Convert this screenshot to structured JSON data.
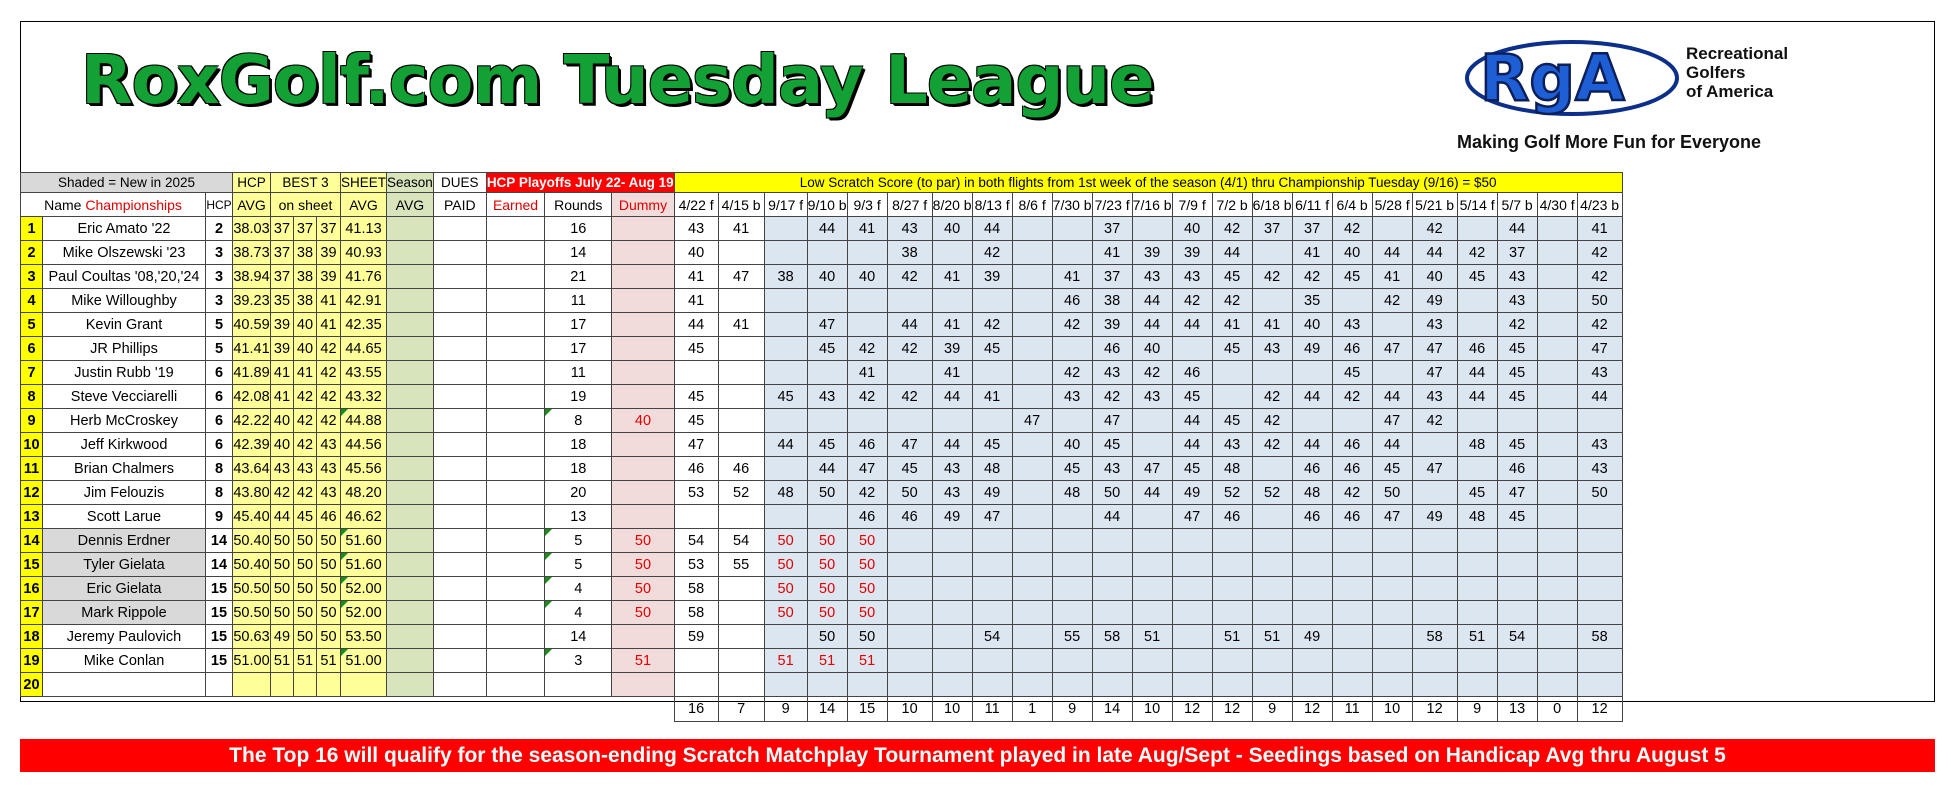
{
  "title": "RoxGolf.com Tuesday League",
  "logo": {
    "letters": "RgA",
    "line1": "Recreational",
    "line2": "Golfers",
    "line3": "of America",
    "tagline": "Making Golf More Fun for Everyone"
  },
  "header": {
    "shaded_note": "Shaded = New in 2025",
    "name_label": "Name",
    "championships_label": "Championships",
    "hcp_label": "HCP",
    "hcp_avg_1": "HCP",
    "hcp_avg_2": "AVG",
    "best3_1": "BEST 3",
    "best3_2": "on sheet",
    "sheet_1": "SHEET",
    "sheet_2": "AVG",
    "season_1": "Season",
    "season_2": "AVG",
    "dues_1": "DUES",
    "dues_2": "PAID",
    "playoffs": "HCP Playoffs July 22- Aug 19",
    "earned": "Earned",
    "rounds": "Rounds",
    "dummy": "Dummy",
    "low_scratch": "Low Scratch Score (to par) in both flights from 1st week of the season (4/1) thru Championship Tuesday (9/16) = $50",
    "weeks": [
      "4/22 f",
      "4/15 b",
      "9/17 f",
      "9/10 b",
      "9/3 f",
      "8/27 f",
      "8/20 b",
      "8/13 f",
      "8/6 f",
      "7/30 b",
      "7/23 f",
      "7/16 b",
      "7/9 f",
      "7/2 b",
      "6/18 b",
      "6/11 f",
      "6/4 b",
      "5/28 f",
      "5/21 b",
      "5/14 f",
      "5/7 b",
      "4/30 f",
      "4/23 b"
    ]
  },
  "players": [
    {
      "rank": "1",
      "name": "Eric Amato '22",
      "hcp": "2",
      "avg": "38.03",
      "b1": "37",
      "b2": "37",
      "b3": "37",
      "sheet": "41.13",
      "new": false,
      "flag": false,
      "dummy": "",
      "rounds": "16",
      "scores": [
        "43",
        "41",
        "",
        "44",
        "41",
        "43",
        "40",
        "44",
        "",
        "",
        "37",
        "",
        "40",
        "42",
        "37",
        "37",
        "42",
        "",
        "42",
        "",
        "44",
        "",
        "41"
      ]
    },
    {
      "rank": "2",
      "name": "Mike Olszewski '23",
      "hcp": "3",
      "avg": "38.73",
      "b1": "37",
      "b2": "38",
      "b3": "39",
      "sheet": "40.93",
      "new": false,
      "flag": false,
      "dummy": "",
      "rounds": "14",
      "scores": [
        "40",
        "",
        "",
        "",
        "",
        "38",
        "",
        "42",
        "",
        "",
        "41",
        "39",
        "39",
        "44",
        "",
        "41",
        "40",
        "44",
        "44",
        "42",
        "37",
        "",
        "42"
      ]
    },
    {
      "rank": "3",
      "name": "Paul Coultas '08,'20,'24",
      "hcp": "3",
      "avg": "38.94",
      "b1": "37",
      "b2": "38",
      "b3": "39",
      "sheet": "41.76",
      "new": false,
      "flag": false,
      "dummy": "",
      "rounds": "21",
      "scores": [
        "41",
        "47",
        "38",
        "40",
        "40",
        "42",
        "41",
        "39",
        "",
        "41",
        "37",
        "43",
        "43",
        "45",
        "42",
        "42",
        "45",
        "41",
        "40",
        "45",
        "43",
        "",
        "42"
      ]
    },
    {
      "rank": "4",
      "name": "Mike Willoughby",
      "hcp": "3",
      "avg": "39.23",
      "b1": "35",
      "b2": "38",
      "b3": "41",
      "sheet": "42.91",
      "new": false,
      "flag": false,
      "dummy": "",
      "rounds": "11",
      "scores": [
        "41",
        "",
        "",
        "",
        "",
        "",
        "",
        "",
        "",
        "46",
        "38",
        "44",
        "42",
        "42",
        "",
        "35",
        "",
        "42",
        "49",
        "",
        "43",
        "",
        "50"
      ]
    },
    {
      "rank": "5",
      "name": "Kevin Grant",
      "hcp": "5",
      "avg": "40.59",
      "b1": "39",
      "b2": "40",
      "b3": "41",
      "sheet": "42.35",
      "new": false,
      "flag": false,
      "dummy": "",
      "rounds": "17",
      "scores": [
        "44",
        "41",
        "",
        "47",
        "",
        "44",
        "41",
        "42",
        "",
        "42",
        "39",
        "44",
        "44",
        "41",
        "41",
        "40",
        "43",
        "",
        "43",
        "",
        "42",
        "",
        "42"
      ]
    },
    {
      "rank": "6",
      "name": "JR Phillips",
      "hcp": "5",
      "avg": "41.41",
      "b1": "39",
      "b2": "40",
      "b3": "42",
      "sheet": "44.65",
      "new": false,
      "flag": false,
      "dummy": "",
      "rounds": "17",
      "scores": [
        "45",
        "",
        "",
        "45",
        "42",
        "42",
        "39",
        "45",
        "",
        "",
        "46",
        "40",
        "",
        "45",
        "43",
        "49",
        "46",
        "47",
        "47",
        "46",
        "45",
        "",
        "47"
      ]
    },
    {
      "rank": "7",
      "name": "Justin Rubb '19",
      "hcp": "6",
      "avg": "41.89",
      "b1": "41",
      "b2": "41",
      "b3": "42",
      "sheet": "43.55",
      "new": false,
      "flag": false,
      "dummy": "",
      "rounds": "11",
      "scores": [
        "",
        "",
        "",
        "",
        "41",
        "",
        "41",
        "",
        "",
        "42",
        "43",
        "42",
        "46",
        "",
        "",
        "",
        "45",
        "",
        "47",
        "44",
        "45",
        "",
        "43"
      ]
    },
    {
      "rank": "8",
      "name": "Steve Vecciarelli",
      "hcp": "6",
      "avg": "42.08",
      "b1": "41",
      "b2": "42",
      "b3": "42",
      "sheet": "43.32",
      "new": false,
      "flag": false,
      "dummy": "",
      "rounds": "19",
      "scores": [
        "45",
        "",
        "45",
        "43",
        "42",
        "42",
        "44",
        "41",
        "",
        "43",
        "42",
        "43",
        "45",
        "",
        "42",
        "44",
        "42",
        "44",
        "43",
        "44",
        "45",
        "",
        "44"
      ]
    },
    {
      "rank": "9",
      "name": "Herb McCroskey",
      "hcp": "6",
      "avg": "42.22",
      "b1": "40",
      "b2": "42",
      "b3": "42",
      "sheet": "44.88",
      "new": false,
      "flag": true,
      "dummy": "40",
      "rounds": "8",
      "scores": [
        "45",
        "",
        "",
        "",
        "",
        "",
        "",
        "",
        "47",
        "",
        "47",
        "",
        "44",
        "45",
        "42",
        "",
        "",
        "47",
        "42",
        "",
        "",
        "",
        ""
      ]
    },
    {
      "rank": "10",
      "name": "Jeff Kirkwood",
      "hcp": "6",
      "avg": "42.39",
      "b1": "40",
      "b2": "42",
      "b3": "43",
      "sheet": "44.56",
      "new": false,
      "flag": false,
      "dummy": "",
      "rounds": "18",
      "scores": [
        "47",
        "",
        "44",
        "45",
        "46",
        "47",
        "44",
        "45",
        "",
        "40",
        "45",
        "",
        "44",
        "43",
        "42",
        "44",
        "46",
        "44",
        "",
        "48",
        "45",
        "",
        "43"
      ]
    },
    {
      "rank": "11",
      "name": "Brian Chalmers",
      "hcp": "8",
      "avg": "43.64",
      "b1": "43",
      "b2": "43",
      "b3": "43",
      "sheet": "45.56",
      "new": false,
      "flag": false,
      "dummy": "",
      "rounds": "18",
      "scores": [
        "46",
        "46",
        "",
        "44",
        "47",
        "45",
        "43",
        "48",
        "",
        "45",
        "43",
        "47",
        "45",
        "48",
        "",
        "46",
        "46",
        "45",
        "47",
        "",
        "46",
        "",
        "43"
      ]
    },
    {
      "rank": "12",
      "name": "Jim Felouzis",
      "hcp": "8",
      "avg": "43.80",
      "b1": "42",
      "b2": "42",
      "b3": "43",
      "sheet": "48.20",
      "new": false,
      "flag": false,
      "dummy": "",
      "rounds": "20",
      "scores": [
        "53",
        "52",
        "48",
        "50",
        "42",
        "50",
        "43",
        "49",
        "",
        "48",
        "50",
        "44",
        "49",
        "52",
        "52",
        "48",
        "42",
        "50",
        "",
        "45",
        "47",
        "",
        "50"
      ]
    },
    {
      "rank": "13",
      "name": "Scott Larue",
      "hcp": "9",
      "avg": "45.40",
      "b1": "44",
      "b2": "45",
      "b3": "46",
      "sheet": "46.62",
      "new": false,
      "flag": false,
      "dummy": "",
      "rounds": "13",
      "scores": [
        "",
        "",
        "",
        "",
        "46",
        "46",
        "49",
        "47",
        "",
        "",
        "44",
        "",
        "47",
        "46",
        "",
        "46",
        "46",
        "47",
        "49",
        "48",
        "45",
        "",
        ""
      ]
    },
    {
      "rank": "14",
      "name": "Dennis Erdner",
      "hcp": "14",
      "avg": "50.40",
      "b1": "50",
      "b2": "50",
      "b3": "50",
      "sheet": "51.60",
      "new": true,
      "flag": true,
      "dummy": "50",
      "rounds": "5",
      "scores": [
        "54",
        "54",
        "50",
        "50",
        "50",
        "",
        "",
        "",
        "",
        "",
        "",
        "",
        "",
        "",
        "",
        "",
        "",
        "",
        "",
        "",
        "",
        "",
        ""
      ],
      "red": [
        2,
        3,
        4
      ]
    },
    {
      "rank": "15",
      "name": "Tyler Gielata",
      "hcp": "14",
      "avg": "50.40",
      "b1": "50",
      "b2": "50",
      "b3": "50",
      "sheet": "51.60",
      "new": true,
      "flag": true,
      "dummy": "50",
      "rounds": "5",
      "scores": [
        "53",
        "55",
        "50",
        "50",
        "50",
        "",
        "",
        "",
        "",
        "",
        "",
        "",
        "",
        "",
        "",
        "",
        "",
        "",
        "",
        "",
        "",
        "",
        ""
      ],
      "red": [
        2,
        3,
        4
      ]
    },
    {
      "rank": "16",
      "name": "Eric Gielata",
      "hcp": "15",
      "avg": "50.50",
      "b1": "50",
      "b2": "50",
      "b3": "50",
      "sheet": "52.00",
      "new": true,
      "flag": true,
      "dummy": "50",
      "rounds": "4",
      "scores": [
        "58",
        "",
        "50",
        "50",
        "50",
        "",
        "",
        "",
        "",
        "",
        "",
        "",
        "",
        "",
        "",
        "",
        "",
        "",
        "",
        "",
        "",
        "",
        ""
      ],
      "red": [
        2,
        3,
        4
      ]
    },
    {
      "rank": "17",
      "name": "Mark Rippole",
      "hcp": "15",
      "avg": "50.50",
      "b1": "50",
      "b2": "50",
      "b3": "50",
      "sheet": "52.00",
      "new": true,
      "flag": true,
      "dummy": "50",
      "rounds": "4",
      "scores": [
        "58",
        "",
        "50",
        "50",
        "50",
        "",
        "",
        "",
        "",
        "",
        "",
        "",
        "",
        "",
        "",
        "",
        "",
        "",
        "",
        "",
        "",
        "",
        ""
      ],
      "red": [
        2,
        3,
        4
      ]
    },
    {
      "rank": "18",
      "name": "Jeremy Paulovich",
      "hcp": "15",
      "avg": "50.63",
      "b1": "49",
      "b2": "50",
      "b3": "50",
      "sheet": "53.50",
      "new": false,
      "flag": false,
      "dummy": "",
      "rounds": "14",
      "scores": [
        "59",
        "",
        "",
        "50",
        "50",
        "",
        "",
        "54",
        "",
        "55",
        "58",
        "51",
        "",
        "51",
        "51",
        "49",
        "",
        "",
        "58",
        "51",
        "54",
        "",
        "58"
      ]
    },
    {
      "rank": "19",
      "name": "Mike Conlan",
      "hcp": "15",
      "avg": "51.00",
      "b1": "51",
      "b2": "51",
      "b3": "51",
      "sheet": "51.00",
      "new": false,
      "flag": true,
      "dummy": "51",
      "rounds": "3",
      "scores": [
        "",
        "",
        "51",
        "51",
        "51",
        "",
        "",
        "",
        "",
        "",
        "",
        "",
        "",
        "",
        "",
        "",
        "",
        "",
        "",
        "",
        "",
        "",
        ""
      ],
      "red": [
        2,
        3,
        4
      ]
    },
    {
      "rank": "20",
      "name": "",
      "hcp": "",
      "avg": "",
      "b1": "",
      "b2": "",
      "b3": "",
      "sheet": "",
      "new": false,
      "flag": false,
      "dummy": "",
      "rounds": "",
      "scores": [
        "",
        "",
        "",
        "",
        "",
        "",
        "",
        "",
        "",
        "",
        "",
        "",
        "",
        "",
        "",
        "",
        "",
        "",
        "",
        "",
        "",
        "",
        ""
      ]
    }
  ],
  "totals": [
    "16",
    "7",
    "9",
    "14",
    "15",
    "10",
    "10",
    "11",
    "1",
    "9",
    "14",
    "10",
    "12",
    "12",
    "9",
    "12",
    "11",
    "10",
    "12",
    "9",
    "13",
    "0",
    "12"
  ],
  "banner": "The Top 16 will qualify for the season-ending Scratch Matchplay Tournament  played in late Aug/Sept -  Seedings based on Handicap Avg thru August 5",
  "colors": {
    "title_green": "#13a035",
    "rank_yellow": "#ffff00",
    "avg_yellow": "#ffff99",
    "season_green": "#d8e4bc",
    "dummy_pink": "#f2dcdb",
    "week_blue": "#dce6f1",
    "banner_red": "#ff0000"
  }
}
